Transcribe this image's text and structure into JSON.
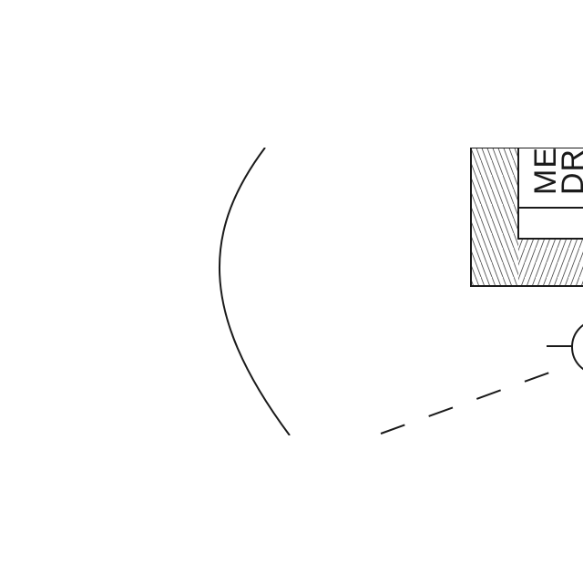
{
  "diagram": {
    "cabinet_label_line1": "ME",
    "cabinet_label_line2": "DR",
    "stroke_color": "#1a1a1a",
    "background_color": "#ffffff"
  }
}
